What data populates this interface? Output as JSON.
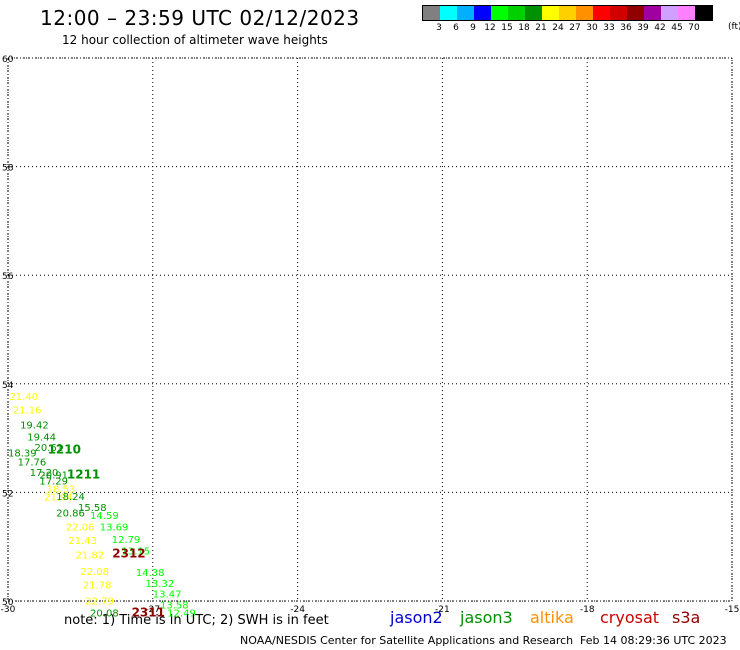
{
  "header": {
    "title": "12:00 – 23:59 UTC 02/12/2023",
    "subtitle": "12 hour collection of altimeter wave heights"
  },
  "colorbar": {
    "colors": [
      "#808080",
      "#00ffff",
      "#00b0ff",
      "#0000ff",
      "#00ff00",
      "#00d000",
      "#009000",
      "#ffff00",
      "#ffd000",
      "#ff9000",
      "#ff0000",
      "#d00000",
      "#900000",
      "#a000a0",
      "#d0a0ff",
      "#ff80ff",
      "#000000"
    ],
    "labels": [
      "3",
      "6",
      "9",
      "12",
      "15",
      "18",
      "21",
      "24",
      "27",
      "30",
      "33",
      "36",
      "39",
      "42",
      "45",
      "70"
    ],
    "unit": "(ft)"
  },
  "map": {
    "lon_range": [
      -30,
      -15
    ],
    "lat_range": [
      50,
      60
    ],
    "x_ticks": [
      "-30",
      "-27",
      "-24",
      "-21",
      "-18",
      "-15"
    ],
    "y_ticks": [
      "50",
      "52",
      "54",
      "56",
      "58",
      "60"
    ],
    "observations": [
      {
        "lon": -29.97,
        "lat": 53.7,
        "text": "21.40",
        "color": "#ffff00"
      },
      {
        "lon": -29.9,
        "lat": 53.45,
        "text": "21.16",
        "color": "#ffff00"
      },
      {
        "lon": -29.75,
        "lat": 53.18,
        "text": "19.42",
        "color": "#009000"
      },
      {
        "lon": -29.6,
        "lat": 52.96,
        "text": "19.44",
        "color": "#009000"
      },
      {
        "lon": -29.45,
        "lat": 52.76,
        "text": "20.61",
        "color": "#009000"
      },
      {
        "lon": -30.0,
        "lat": 52.66,
        "text": "18.39",
        "color": "#009000"
      },
      {
        "lon": -29.8,
        "lat": 52.5,
        "text": "17.76",
        "color": "#009000"
      },
      {
        "lon": -29.55,
        "lat": 52.3,
        "text": "17.20",
        "color": "#009000"
      },
      {
        "lon": -29.35,
        "lat": 52.26,
        "text": "20.91",
        "color": "#009000"
      },
      {
        "lon": -29.35,
        "lat": 52.15,
        "text": "17.29",
        "color": "#009000"
      },
      {
        "lon": -29.2,
        "lat": 52.0,
        "text": "18.53",
        "color": "#ffff00"
      },
      {
        "lon": -29.25,
        "lat": 51.85,
        "text": "21.94",
        "color": "#ffff00"
      },
      {
        "lon": -29.0,
        "lat": 51.86,
        "text": "18.24",
        "color": "#009000"
      },
      {
        "lon": -29.0,
        "lat": 51.56,
        "text": "20.86",
        "color": "#009000"
      },
      {
        "lon": -28.55,
        "lat": 51.66,
        "text": "15.58",
        "color": "#009000"
      },
      {
        "lon": -28.3,
        "lat": 51.51,
        "text": "14.59",
        "color": "#00ff00"
      },
      {
        "lon": -28.1,
        "lat": 51.3,
        "text": "13.69",
        "color": "#00ff00"
      },
      {
        "lon": -28.8,
        "lat": 51.3,
        "text": "22.06",
        "color": "#ffff00"
      },
      {
        "lon": -27.85,
        "lat": 51.07,
        "text": "12.79",
        "color": "#00ff00"
      },
      {
        "lon": -28.75,
        "lat": 51.05,
        "text": "21.43",
        "color": "#ffff00"
      },
      {
        "lon": -27.65,
        "lat": 50.86,
        "text": "13.15",
        "color": "#00ff00"
      },
      {
        "lon": -28.6,
        "lat": 50.78,
        "text": "21.82",
        "color": "#ffff00"
      },
      {
        "lon": -27.35,
        "lat": 50.46,
        "text": "14.38",
        "color": "#00ff00"
      },
      {
        "lon": -28.5,
        "lat": 50.48,
        "text": "22.08",
        "color": "#ffff00"
      },
      {
        "lon": -27.15,
        "lat": 50.26,
        "text": "13.32",
        "color": "#00ff00"
      },
      {
        "lon": -28.45,
        "lat": 50.23,
        "text": "21.78",
        "color": "#ffff00"
      },
      {
        "lon": -27.0,
        "lat": 50.06,
        "text": "13.47",
        "color": "#00ff00"
      },
      {
        "lon": -28.4,
        "lat": 49.94,
        "text": "22.79",
        "color": "#ffff00"
      },
      {
        "lon": -26.85,
        "lat": 49.86,
        "text": "13.58",
        "color": "#00ff00"
      },
      {
        "lon": -28.3,
        "lat": 49.71,
        "text": "20.08",
        "color": "#009000"
      },
      {
        "lon": -26.7,
        "lat": 49.71,
        "text": "12.49",
        "color": "#00ff00"
      }
    ],
    "pass_labels": [
      {
        "lon": -29.18,
        "lat": 52.72,
        "text": "1210",
        "color": "#009000"
      },
      {
        "lon": -28.78,
        "lat": 52.26,
        "text": "1211",
        "color": "#009000"
      },
      {
        "lon": -27.84,
        "lat": 50.8,
        "text": "2312",
        "color": "#900000"
      },
      {
        "lon": -27.44,
        "lat": 49.71,
        "text": "2311",
        "color": "#900000"
      }
    ]
  },
  "footer": {
    "note": "note: 1) Time is in UTC; 2) SWH is in feet",
    "satellites": [
      {
        "name": "jason2",
        "color": "#0000cc"
      },
      {
        "name": "jason3",
        "color": "#009000"
      },
      {
        "name": "altika",
        "color": "#ff9000"
      },
      {
        "name": "cryosat",
        "color": "#cc0000"
      },
      {
        "name": "s3a",
        "color": "#900000"
      }
    ],
    "credit": "NOAA/NESDIS Center for Satellite Applications and Research",
    "timestamp": "Feb 14 08:29:36 UTC 2023"
  }
}
